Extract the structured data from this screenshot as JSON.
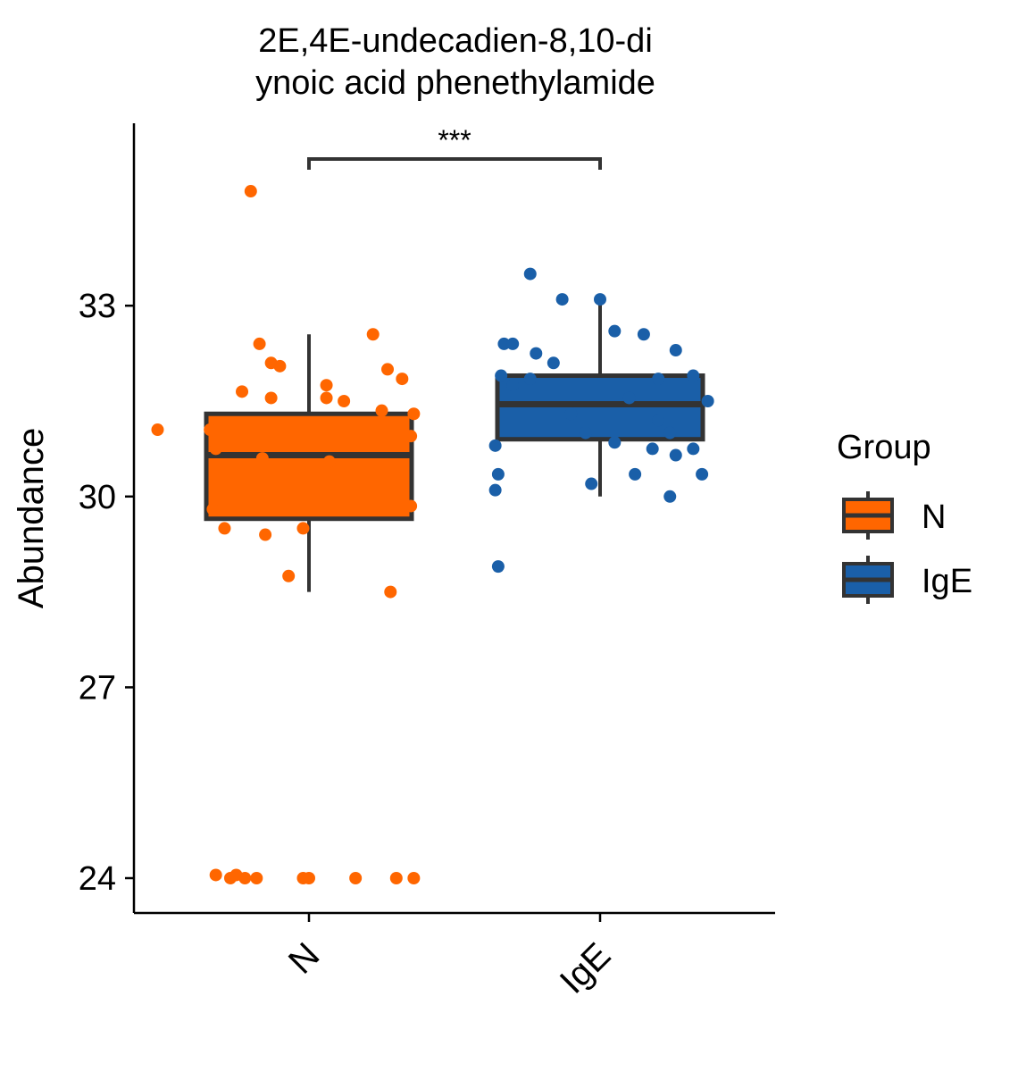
{
  "chart_data": {
    "type": "box",
    "title_line1": "2E,4E-undecadien-8,10-di",
    "title_line2": "ynoic acid phenethylamide",
    "ylabel": "Abundance",
    "xlabel": "",
    "ylim": [
      23.45,
      35.9
    ],
    "yticks": [
      24,
      27,
      30,
      33
    ],
    "categories": [
      "N",
      "IgE"
    ],
    "significance": {
      "from": "N",
      "to": "IgE",
      "label": "***"
    },
    "legend": {
      "title": "Group",
      "position": "right",
      "entries": [
        {
          "name": "N",
          "color": "#ff6600"
        },
        {
          "name": "IgE",
          "color": "#1a5fa8"
        }
      ]
    },
    "series": [
      {
        "name": "N",
        "color": "#ff6600",
        "box": {
          "whisker_low": 28.5,
          "q1": 29.65,
          "median": 30.65,
          "q3": 31.3,
          "whisker_high": 32.55
        },
        "points": [
          {
            "dx": -0.2,
            "y": 34.8
          },
          {
            "dx": -0.17,
            "y": 32.4
          },
          {
            "dx": 0.22,
            "y": 32.55
          },
          {
            "dx": -0.13,
            "y": 32.1
          },
          {
            "dx": -0.1,
            "y": 32.05
          },
          {
            "dx": 0.27,
            "y": 32.0
          },
          {
            "dx": 0.32,
            "y": 31.85
          },
          {
            "dx": -0.23,
            "y": 31.65
          },
          {
            "dx": -0.13,
            "y": 31.55
          },
          {
            "dx": 0.06,
            "y": 31.75
          },
          {
            "dx": 0.06,
            "y": 31.55
          },
          {
            "dx": 0.12,
            "y": 31.5
          },
          {
            "dx": 0.25,
            "y": 31.35
          },
          {
            "dx": -0.52,
            "y": 31.05
          },
          {
            "dx": -0.34,
            "y": 31.05
          },
          {
            "dx": 0.36,
            "y": 31.3
          },
          {
            "dx": 0.35,
            "y": 30.95
          },
          {
            "dx": -0.32,
            "y": 30.75
          },
          {
            "dx": -0.16,
            "y": 30.6
          },
          {
            "dx": 0.07,
            "y": 30.55
          },
          {
            "dx": -0.33,
            "y": 29.8
          },
          {
            "dx": 0.35,
            "y": 29.85
          },
          {
            "dx": -0.29,
            "y": 29.5
          },
          {
            "dx": -0.15,
            "y": 29.4
          },
          {
            "dx": -0.02,
            "y": 29.5
          },
          {
            "dx": -0.07,
            "y": 28.75
          },
          {
            "dx": 0.28,
            "y": 28.5
          },
          {
            "dx": -0.32,
            "y": 24.05
          },
          {
            "dx": -0.27,
            "y": 24.0
          },
          {
            "dx": -0.25,
            "y": 24.05
          },
          {
            "dx": -0.22,
            "y": 24.0
          },
          {
            "dx": -0.18,
            "y": 24.0
          },
          {
            "dx": -0.02,
            "y": 24.0
          },
          {
            "dx": 0.0,
            "y": 24.0
          },
          {
            "dx": 0.16,
            "y": 24.0
          },
          {
            "dx": 0.3,
            "y": 24.0
          },
          {
            "dx": 0.36,
            "y": 24.0
          }
        ]
      },
      {
        "name": "IgE",
        "color": "#1a5fa8",
        "box": {
          "whisker_low": 30.0,
          "q1": 30.9,
          "median": 31.45,
          "q3": 31.9,
          "whisker_high": 33.1
        },
        "points": [
          {
            "dx": -0.24,
            "y": 33.5
          },
          {
            "dx": -0.13,
            "y": 33.1
          },
          {
            "dx": 0.0,
            "y": 33.1
          },
          {
            "dx": 0.05,
            "y": 32.6
          },
          {
            "dx": 0.15,
            "y": 32.55
          },
          {
            "dx": -0.33,
            "y": 32.4
          },
          {
            "dx": -0.3,
            "y": 32.4
          },
          {
            "dx": -0.22,
            "y": 32.25
          },
          {
            "dx": 0.26,
            "y": 32.3
          },
          {
            "dx": -0.16,
            "y": 32.1
          },
          {
            "dx": -0.34,
            "y": 31.9
          },
          {
            "dx": 0.2,
            "y": 31.85
          },
          {
            "dx": 0.32,
            "y": 31.9
          },
          {
            "dx": -0.24,
            "y": 31.85
          },
          {
            "dx": -0.3,
            "y": 31.75
          },
          {
            "dx": 0.1,
            "y": 31.55
          },
          {
            "dx": 0.37,
            "y": 31.5
          },
          {
            "dx": -0.1,
            "y": 31.3
          },
          {
            "dx": 0.2,
            "y": 31.2
          },
          {
            "dx": -0.05,
            "y": 31.0
          },
          {
            "dx": 0.24,
            "y": 31.0
          },
          {
            "dx": 0.05,
            "y": 30.85
          },
          {
            "dx": -0.36,
            "y": 30.8
          },
          {
            "dx": 0.18,
            "y": 30.75
          },
          {
            "dx": 0.32,
            "y": 30.75
          },
          {
            "dx": 0.26,
            "y": 30.65
          },
          {
            "dx": -0.35,
            "y": 30.35
          },
          {
            "dx": 0.12,
            "y": 30.35
          },
          {
            "dx": 0.35,
            "y": 30.35
          },
          {
            "dx": -0.03,
            "y": 30.2
          },
          {
            "dx": -0.36,
            "y": 30.1
          },
          {
            "dx": 0.24,
            "y": 30.0
          },
          {
            "dx": -0.35,
            "y": 28.9
          }
        ]
      }
    ]
  }
}
